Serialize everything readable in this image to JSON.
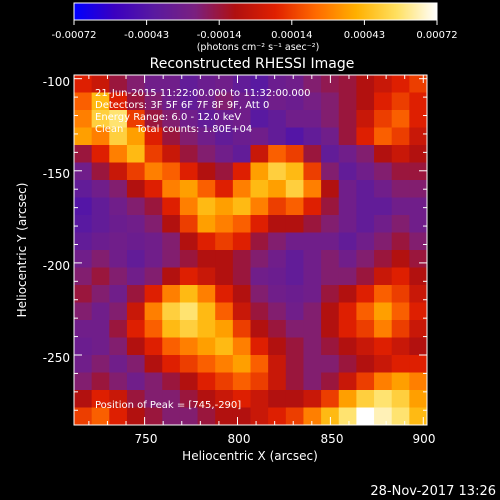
{
  "colorbar": {
    "ticks": [
      "-0.00072",
      "-0.00043",
      "-0.00014",
      "0.00014",
      "0.00043",
      "0.00072"
    ],
    "units_label": "(photons cm⁻² s⁻¹ asec⁻²)",
    "colormap": [
      "#0000ff",
      "#3a00c0",
      "#5a1aa0",
      "#7a2080",
      "#b01010",
      "#e02000",
      "#ff6a00",
      "#ffb000",
      "#ffe060",
      "#ffffff"
    ]
  },
  "chart_data": {
    "type": "heatmap",
    "title": "Reconstructed RHESSI Image",
    "xlabel": "Heliocentric X (arcsec)",
    "ylabel": "Heliocentric Y (arcsec)",
    "xlim": [
      712,
      902
    ],
    "ylim": [
      -288,
      -98
    ],
    "xticks": [
      750,
      800,
      850,
      900
    ],
    "yticks": [
      -100,
      -150,
      -200,
      -250
    ],
    "annotations": [
      "21-Jun-2015 11:22:00.000 to 11:32:00.000",
      "Detectors: 3F 5F 6F 7F 8F 9F, Att 0",
      "Energy Range: 6.0 - 12.0 keV",
      "Clean    Total counts: 1.80E+04"
    ],
    "peak_label": "Position of Peak = [745,-290]",
    "peak_position": [
      745,
      -290
    ],
    "cell_values_normalized_rows_top_to_bottom": [
      [
        0.55,
        0.5,
        0.4,
        0.35,
        0.3,
        0.3,
        0.25,
        0.28,
        0.3,
        0.25,
        0.22,
        0.28,
        0.3,
        0.35,
        0.38,
        0.4,
        0.45,
        0.5,
        0.55,
        0.6
      ],
      [
        0.65,
        0.8,
        0.55,
        0.4,
        0.35,
        0.3,
        0.25,
        0.3,
        0.35,
        0.3,
        0.25,
        0.3,
        0.28,
        0.32,
        0.35,
        0.4,
        0.45,
        0.55,
        0.6,
        0.55
      ],
      [
        0.7,
        0.85,
        0.9,
        0.6,
        0.4,
        0.35,
        0.3,
        0.25,
        0.28,
        0.3,
        0.22,
        0.25,
        0.3,
        0.3,
        0.35,
        0.4,
        0.5,
        0.6,
        0.65,
        0.55
      ],
      [
        0.75,
        0.7,
        0.85,
        0.75,
        0.55,
        0.4,
        0.35,
        0.3,
        0.25,
        0.28,
        0.3,
        0.25,
        0.2,
        0.25,
        0.3,
        0.4,
        0.55,
        0.65,
        0.6,
        0.5
      ],
      [
        0.4,
        0.55,
        0.7,
        0.8,
        0.6,
        0.5,
        0.4,
        0.35,
        0.3,
        0.25,
        0.5,
        0.65,
        0.6,
        0.4,
        0.25,
        0.3,
        0.35,
        0.45,
        0.5,
        0.45
      ],
      [
        0.3,
        0.4,
        0.5,
        0.6,
        0.7,
        0.65,
        0.55,
        0.45,
        0.4,
        0.55,
        0.75,
        0.85,
        0.8,
        0.6,
        0.35,
        0.25,
        0.3,
        0.35,
        0.4,
        0.4
      ],
      [
        0.25,
        0.3,
        0.35,
        0.45,
        0.55,
        0.7,
        0.75,
        0.65,
        0.55,
        0.7,
        0.8,
        0.75,
        0.85,
        0.7,
        0.45,
        0.3,
        0.25,
        0.3,
        0.35,
        0.35
      ],
      [
        0.2,
        0.25,
        0.3,
        0.35,
        0.4,
        0.55,
        0.7,
        0.8,
        0.75,
        0.8,
        0.7,
        0.6,
        0.65,
        0.55,
        0.4,
        0.3,
        0.25,
        0.25,
        0.3,
        0.3
      ],
      [
        0.22,
        0.25,
        0.28,
        0.3,
        0.35,
        0.45,
        0.6,
        0.75,
        0.7,
        0.65,
        0.55,
        0.45,
        0.45,
        0.4,
        0.35,
        0.3,
        0.25,
        0.3,
        0.35,
        0.3
      ],
      [
        0.25,
        0.28,
        0.3,
        0.28,
        0.3,
        0.35,
        0.45,
        0.55,
        0.6,
        0.55,
        0.4,
        0.35,
        0.3,
        0.3,
        0.3,
        0.25,
        0.3,
        0.35,
        0.4,
        0.35
      ],
      [
        0.3,
        0.35,
        0.3,
        0.25,
        0.3,
        0.35,
        0.4,
        0.45,
        0.45,
        0.4,
        0.35,
        0.3,
        0.25,
        0.3,
        0.35,
        0.3,
        0.35,
        0.4,
        0.45,
        0.4
      ],
      [
        0.35,
        0.4,
        0.35,
        0.3,
        0.35,
        0.45,
        0.55,
        0.5,
        0.45,
        0.4,
        0.3,
        0.28,
        0.25,
        0.3,
        0.35,
        0.35,
        0.4,
        0.5,
        0.55,
        0.45
      ],
      [
        0.4,
        0.35,
        0.3,
        0.4,
        0.55,
        0.7,
        0.8,
        0.7,
        0.55,
        0.45,
        0.35,
        0.3,
        0.28,
        0.3,
        0.4,
        0.45,
        0.55,
        0.65,
        0.6,
        0.5
      ],
      [
        0.35,
        0.3,
        0.35,
        0.5,
        0.7,
        0.85,
        0.9,
        0.8,
        0.65,
        0.5,
        0.4,
        0.35,
        0.3,
        0.35,
        0.45,
        0.55,
        0.65,
        0.75,
        0.65,
        0.55
      ],
      [
        0.3,
        0.3,
        0.4,
        0.55,
        0.65,
        0.8,
        0.85,
        0.8,
        0.75,
        0.6,
        0.45,
        0.4,
        0.35,
        0.35,
        0.45,
        0.55,
        0.6,
        0.7,
        0.6,
        0.5
      ],
      [
        0.28,
        0.3,
        0.35,
        0.45,
        0.55,
        0.65,
        0.7,
        0.75,
        0.8,
        0.7,
        0.55,
        0.45,
        0.4,
        0.35,
        0.4,
        0.45,
        0.5,
        0.55,
        0.5,
        0.45
      ],
      [
        0.3,
        0.35,
        0.3,
        0.35,
        0.45,
        0.55,
        0.6,
        0.65,
        0.7,
        0.75,
        0.65,
        0.5,
        0.4,
        0.35,
        0.35,
        0.4,
        0.45,
        0.5,
        0.55,
        0.55
      ],
      [
        0.35,
        0.4,
        0.35,
        0.3,
        0.35,
        0.4,
        0.45,
        0.55,
        0.6,
        0.65,
        0.6,
        0.5,
        0.4,
        0.35,
        0.4,
        0.5,
        0.6,
        0.7,
        0.75,
        0.7
      ],
      [
        0.45,
        0.55,
        0.5,
        0.4,
        0.35,
        0.35,
        0.4,
        0.45,
        0.5,
        0.55,
        0.5,
        0.45,
        0.45,
        0.5,
        0.6,
        0.75,
        0.85,
        0.9,
        0.85,
        0.75
      ],
      [
        0.6,
        0.65,
        0.55,
        0.45,
        0.4,
        0.35,
        0.35,
        0.4,
        0.45,
        0.45,
        0.5,
        0.55,
        0.6,
        0.7,
        0.8,
        0.9,
        1.0,
        0.95,
        0.9,
        0.8
      ]
    ]
  },
  "footer": {
    "timestamp": "28-Nov-2017 13:26"
  }
}
